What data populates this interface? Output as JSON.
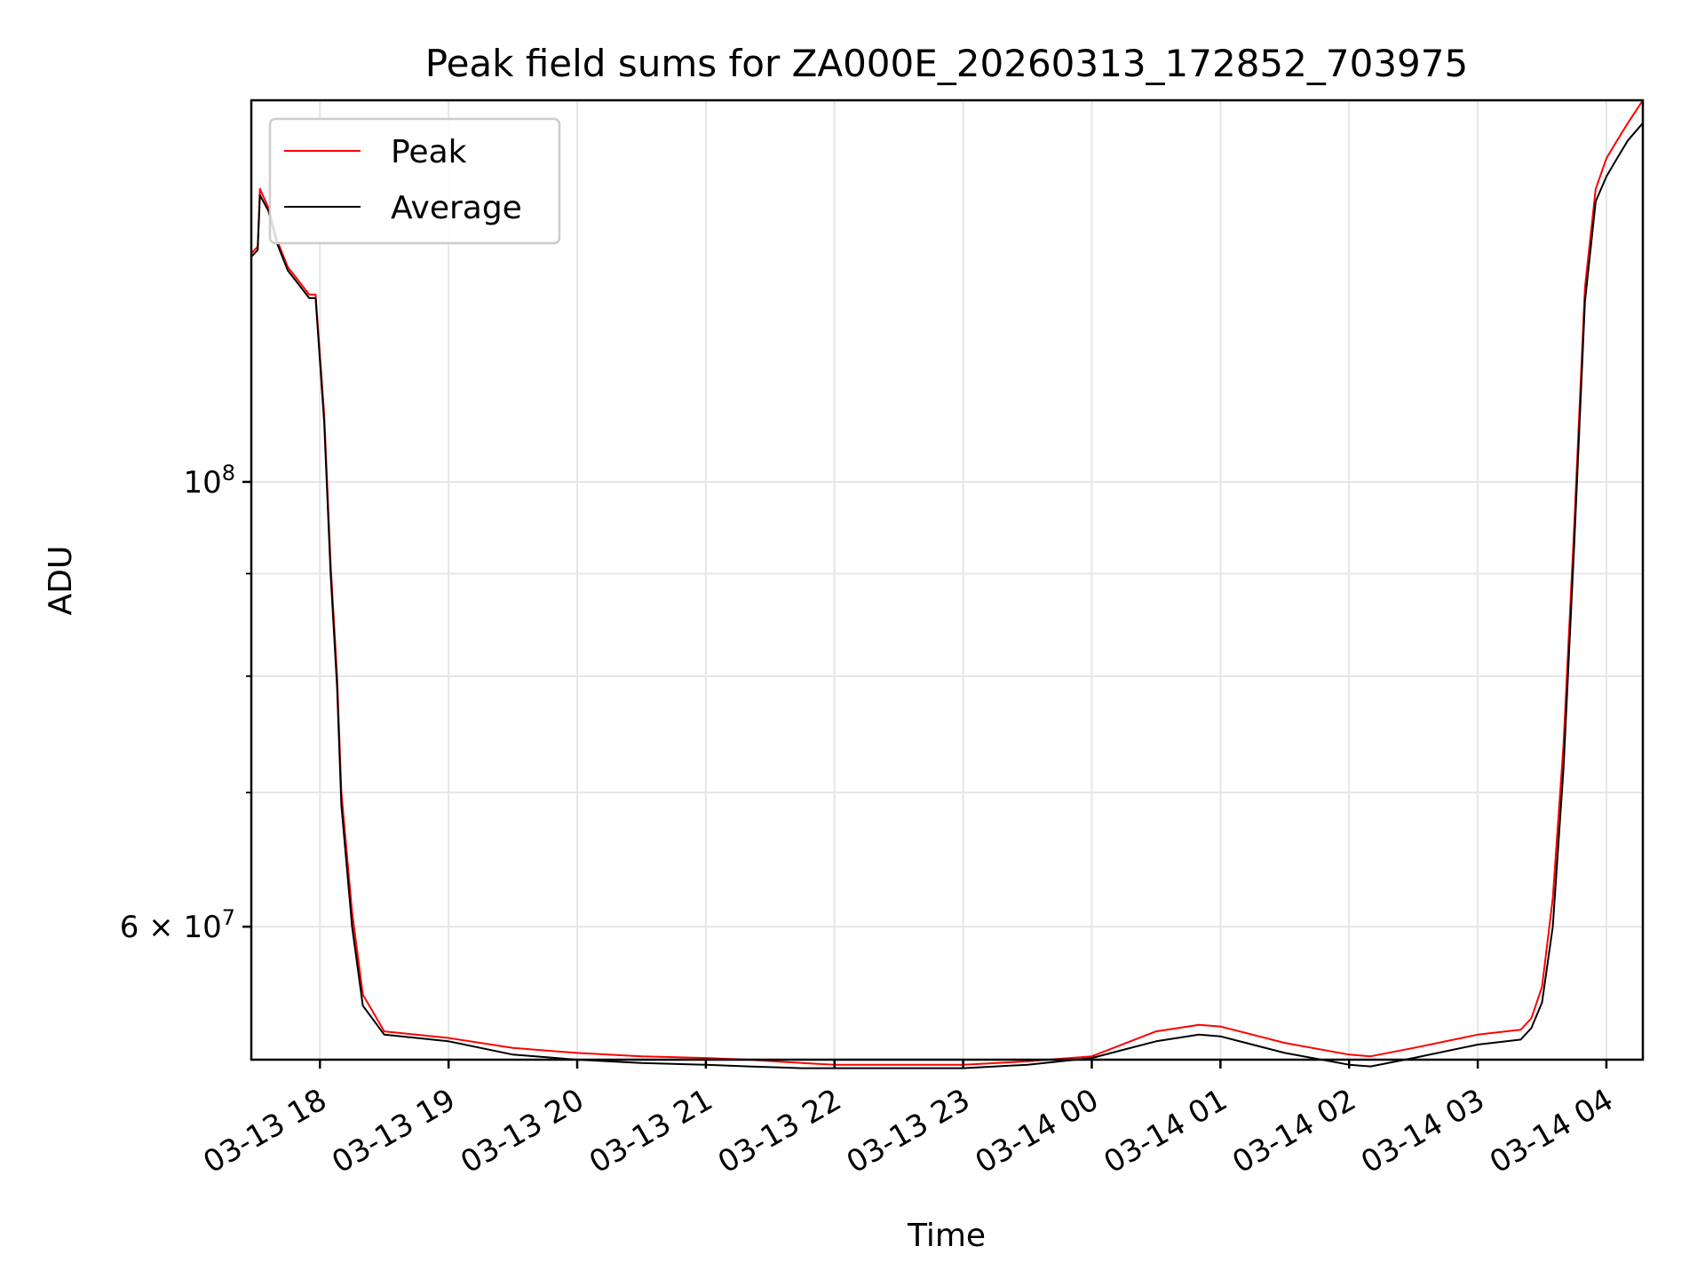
{
  "chart_data": {
    "type": "line",
    "title": "Peak field sums for ZA000E_20260313_172852_703975",
    "xlabel": "Time",
    "ylabel": "ADU",
    "y_scale": "log",
    "grid": true,
    "legend_placement": "top-left",
    "x_axis": {
      "type": "datetime",
      "range": [
        "2026-03-13 17:28",
        "2026-03-14 04:17"
      ],
      "tick_labels": [
        "03-13 18",
        "03-13 19",
        "03-13 20",
        "03-13 21",
        "03-13 22",
        "03-13 23",
        "03-14 00",
        "03-14 01",
        "03-14 02",
        "03-14 03",
        "03-14 04"
      ],
      "tick_times": [
        "2026-03-13 18:00",
        "2026-03-13 19:00",
        "2026-03-13 20:00",
        "2026-03-13 21:00",
        "2026-03-13 22:00",
        "2026-03-13 23:00",
        "2026-03-14 00:00",
        "2026-03-14 01:00",
        "2026-03-14 02:00",
        "2026-03-14 03:00",
        "2026-03-14 04:00"
      ],
      "tick_rotation_deg": 30
    },
    "y_axis": {
      "range": [
        51500000,
        155000000
      ],
      "major_ticks": [
        {
          "value": 100000000,
          "base": "10",
          "exp": "8"
        },
        {
          "value": 60000000,
          "base": "6 × 10",
          "exp": "7"
        }
      ],
      "minor_tick_values": [
        60000000,
        70000000,
        80000000,
        90000000,
        100000000
      ]
    },
    "series": [
      {
        "name": "Peak",
        "color": "#ff0000",
        "x": [
          "2026-03-13 17:28",
          "2026-03-13 17:31",
          "2026-03-13 17:32",
          "2026-03-13 17:36",
          "2026-03-13 17:40",
          "2026-03-13 17:45",
          "2026-03-13 17:50",
          "2026-03-13 17:55",
          "2026-03-13 17:58",
          "2026-03-13 18:02",
          "2026-03-13 18:05",
          "2026-03-13 18:08",
          "2026-03-13 18:10",
          "2026-03-13 18:15",
          "2026-03-13 18:20",
          "2026-03-13 18:30",
          "2026-03-13 19:00",
          "2026-03-13 19:30",
          "2026-03-13 20:00",
          "2026-03-13 20:30",
          "2026-03-13 21:00",
          "2026-03-13 21:20",
          "2026-03-13 21:45",
          "2026-03-13 22:00",
          "2026-03-13 22:30",
          "2026-03-13 22:45",
          "2026-03-13 23:00",
          "2026-03-13 23:30",
          "2026-03-14 00:00",
          "2026-03-14 00:30",
          "2026-03-14 00:50",
          "2026-03-14 01:00",
          "2026-03-14 01:30",
          "2026-03-14 02:00",
          "2026-03-14 02:10",
          "2026-03-14 02:30",
          "2026-03-14 03:00",
          "2026-03-14 03:20",
          "2026-03-14 03:25",
          "2026-03-14 03:30",
          "2026-03-14 03:35",
          "2026-03-14 03:40",
          "2026-03-14 03:45",
          "2026-03-14 03:50",
          "2026-03-14 03:55",
          "2026-03-14 04:00",
          "2026-03-14 04:05",
          "2026-03-14 04:10",
          "2026-03-14 04:17"
        ],
        "y": [
          130000000,
          131000000,
          140000000,
          137000000,
          132000000,
          128000000,
          126000000,
          124000000,
          124000000,
          108000000,
          91000000,
          80000000,
          70000000,
          61000000,
          55500000,
          53200000,
          52800000,
          52200000,
          51900000,
          51700000,
          51600000,
          51500000,
          51300000,
          51200000,
          51200000,
          51200000,
          51200000,
          51400000,
          51700000,
          53200000,
          53600000,
          53500000,
          52500000,
          51800000,
          51700000,
          52200000,
          53000000,
          53300000,
          54000000,
          56000000,
          62000000,
          74000000,
          95000000,
          125000000,
          140000000,
          145000000,
          148000000,
          151000000,
          155000000
        ]
      },
      {
        "name": "Average",
        "color": "#000000",
        "x": [
          "2026-03-13 17:28",
          "2026-03-13 17:31",
          "2026-03-13 17:32",
          "2026-03-13 17:36",
          "2026-03-13 17:40",
          "2026-03-13 17:45",
          "2026-03-13 17:50",
          "2026-03-13 17:55",
          "2026-03-13 17:58",
          "2026-03-13 18:02",
          "2026-03-13 18:05",
          "2026-03-13 18:08",
          "2026-03-13 18:10",
          "2026-03-13 18:15",
          "2026-03-13 18:20",
          "2026-03-13 18:30",
          "2026-03-13 19:00",
          "2026-03-13 19:30",
          "2026-03-13 20:00",
          "2026-03-13 20:30",
          "2026-03-13 21:00",
          "2026-03-13 21:20",
          "2026-03-13 21:45",
          "2026-03-13 22:00",
          "2026-03-13 22:30",
          "2026-03-13 22:45",
          "2026-03-13 23:00",
          "2026-03-13 23:30",
          "2026-03-14 00:00",
          "2026-03-14 00:30",
          "2026-03-14 00:50",
          "2026-03-14 01:00",
          "2026-03-14 01:30",
          "2026-03-14 02:00",
          "2026-03-14 02:10",
          "2026-03-14 02:30",
          "2026-03-14 03:00",
          "2026-03-14 03:20",
          "2026-03-14 03:25",
          "2026-03-14 03:30",
          "2026-03-14 03:35",
          "2026-03-14 03:40",
          "2026-03-14 03:45",
          "2026-03-14 03:50",
          "2026-03-14 03:55",
          "2026-03-14 04:00",
          "2026-03-14 04:05",
          "2026-03-14 04:10",
          "2026-03-14 04:17"
        ],
        "y": [
          129500000,
          130500000,
          139000000,
          136500000,
          131500000,
          127500000,
          125500000,
          123500000,
          123500000,
          107000000,
          90000000,
          79000000,
          69000000,
          60000000,
          54800000,
          53000000,
          52600000,
          51800000,
          51500000,
          51300000,
          51200000,
          51100000,
          51000000,
          51000000,
          51000000,
          51000000,
          51000000,
          51200000,
          51600000,
          52600000,
          53000000,
          52900000,
          51900000,
          51200000,
          51100000,
          51600000,
          52400000,
          52700000,
          53400000,
          55000000,
          60000000,
          72000000,
          93000000,
          123000000,
          138000000,
          142000000,
          145000000,
          148000000,
          151000000
        ]
      }
    ]
  }
}
